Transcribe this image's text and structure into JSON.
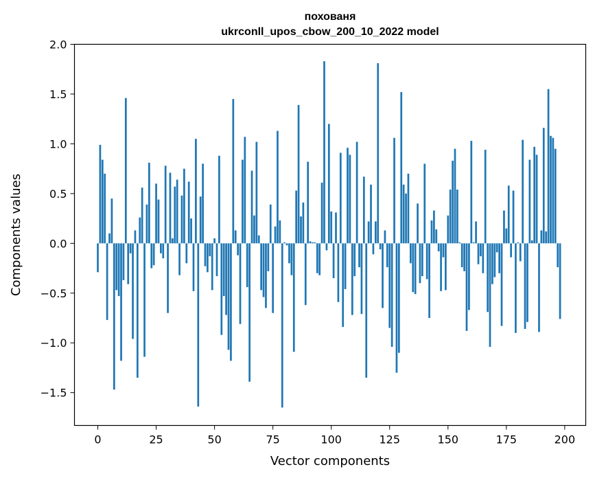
{
  "chart_data": {
    "type": "bar",
    "title_lines": [
      "похованя",
      "ukrconll_upos_cbow_200_10_2022 model"
    ],
    "xlabel": "Vector components",
    "ylabel": "Components values",
    "xlim": [
      -10,
      209
    ],
    "ylim": [
      -1.83,
      2.0
    ],
    "xticks": [
      0,
      25,
      50,
      75,
      100,
      125,
      150,
      175,
      200
    ],
    "yticks": [
      2.0,
      1.5,
      1.0,
      0.5,
      0.0,
      -0.5,
      -1.0,
      -1.5
    ],
    "ytick_labels": [
      "2.0",
      "1.5",
      "1.0",
      "0.5",
      "0.0",
      "−0.5",
      "−1.0",
      "−1.5"
    ],
    "grid": false,
    "bar_color": "#1f77b4",
    "values": [
      -0.29,
      0.99,
      0.84,
      0.7,
      -0.77,
      0.1,
      0.45,
      -1.47,
      -0.47,
      -0.53,
      -1.18,
      -0.37,
      1.46,
      -0.41,
      -0.1,
      -0.96,
      0.13,
      -1.35,
      0.26,
      0.56,
      -1.14,
      0.39,
      0.81,
      -0.25,
      -0.22,
      0.6,
      0.44,
      -0.1,
      -0.15,
      0.78,
      -0.7,
      0.71,
      0.05,
      0.57,
      0.64,
      -0.32,
      0.48,
      0.75,
      -0.2,
      0.62,
      0.25,
      -0.48,
      1.05,
      -1.64,
      0.47,
      0.8,
      -0.23,
      -0.29,
      -0.13,
      -0.47,
      0.05,
      -0.33,
      0.88,
      -0.92,
      -0.53,
      -0.72,
      -1.07,
      -1.18,
      1.45,
      0.13,
      -0.12,
      -0.81,
      0.84,
      1.07,
      -0.44,
      -1.39,
      0.73,
      0.28,
      1.02,
      0.08,
      -0.47,
      -0.54,
      -0.65,
      -0.28,
      0.39,
      -0.7,
      0.17,
      1.13,
      0.23,
      -1.65,
      0.01,
      -0.02,
      -0.2,
      -0.32,
      -1.09,
      0.53,
      1.39,
      0.27,
      0.41,
      -0.62,
      0.82,
      0.02,
      0.01,
      0.01,
      -0.3,
      -0.32,
      0.61,
      1.83,
      -0.07,
      1.2,
      0.32,
      -0.35,
      0.31,
      -0.59,
      0.91,
      -0.84,
      -0.46,
      0.96,
      0.89,
      -0.72,
      -0.33,
      1.02,
      -0.24,
      -0.71,
      0.67,
      -1.35,
      0.22,
      0.59,
      -0.11,
      0.22,
      1.81,
      -0.06,
      -0.65,
      0.13,
      -0.24,
      -0.85,
      -1.04,
      1.06,
      -1.3,
      -1.1,
      1.52,
      0.59,
      0.5,
      0.7,
      -0.2,
      -0.49,
      -0.51,
      0.4,
      -0.4,
      -0.33,
      0.8,
      -0.36,
      -0.75,
      0.23,
      0.33,
      0.14,
      -0.08,
      -0.48,
      -0.14,
      -0.47,
      0.28,
      0.54,
      0.83,
      0.95,
      0.54,
      0.01,
      -0.24,
      -0.28,
      -0.88,
      -0.67,
      1.03,
      0.01,
      0.22,
      -0.21,
      -0.13,
      -0.3,
      0.94,
      -0.69,
      -1.04,
      -0.41,
      -0.34,
      -0.09,
      -0.3,
      -0.83,
      0.33,
      0.15,
      0.58,
      -0.14,
      0.53,
      -0.9,
      0.01,
      -0.18,
      1.04,
      -0.86,
      -0.79,
      0.84,
      0.03,
      0.97,
      0.89,
      -0.89,
      0.13,
      1.16,
      0.12,
      1.55,
      1.08,
      1.06,
      0.95,
      -0.24,
      -0.76
    ]
  }
}
